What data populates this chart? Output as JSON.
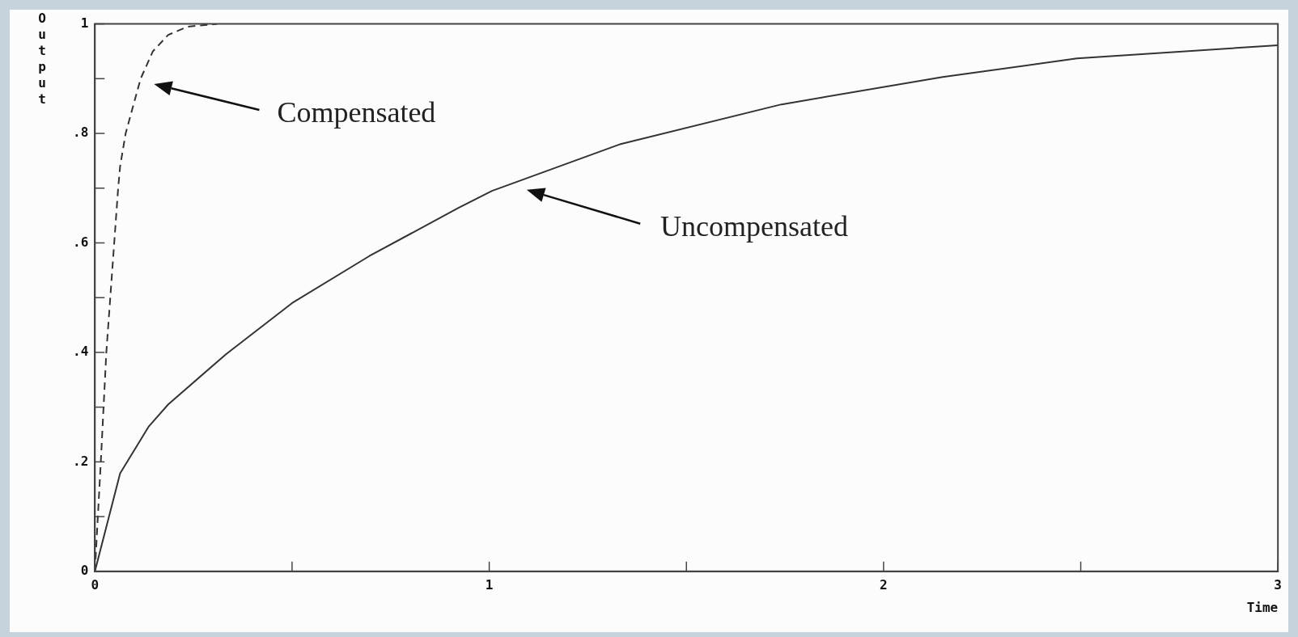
{
  "chart_data": {
    "type": "line",
    "xlabel": "Time",
    "ylabel": "Output",
    "xlim": [
      0,
      3
    ],
    "xticks": [
      0,
      {
        "value": 0.5,
        "label": null
      },
      1,
      {
        "value": 1.5,
        "label": null
      },
      2,
      {
        "value": 2.5,
        "label": null
      },
      3
    ],
    "ylim": [
      0,
      1
    ],
    "yticks": [
      0,
      {
        "value": 0.1,
        "label": null
      },
      {
        "value": 0.2,
        "label": ".2"
      },
      {
        "value": 0.3,
        "label": null
      },
      {
        "value": 0.4,
        "label": ".4"
      },
      {
        "value": 0.5,
        "label": null
      },
      {
        "value": 0.6,
        "label": ".6"
      },
      {
        "value": 0.7,
        "label": null
      },
      {
        "value": 0.8,
        "label": ".8"
      },
      {
        "value": 0.9,
        "label": null
      },
      1
    ],
    "grid": false,
    "legend": false,
    "marker": "none",
    "series": [
      {
        "color": "#333333",
        "line_style": "dashed",
        "x": [
          0,
          0.015,
          0.029,
          0.049,
          0.059,
          0.064,
          0.078,
          0.116,
          0.147,
          0.186,
          0.235,
          0.31
        ],
        "values": [
          0,
          0.2,
          0.4,
          0.6,
          0.7,
          0.74,
          0.8,
          0.9,
          0.95,
          0.98,
          0.995,
          1
        ]
      },
      {
        "color": "#333333",
        "line_style": "solid",
        "x": [
          0,
          0.064,
          0.137,
          0.186,
          0.333,
          0.5,
          0.696,
          0.922,
          1.007,
          1.331,
          1.741,
          2.15,
          2.49,
          3
        ],
        "values": [
          0,
          0.179,
          0.265,
          0.305,
          0.397,
          0.49,
          0.576,
          0.664,
          0.695,
          0.78,
          0.853,
          0.903,
          0.937,
          0.961
        ]
      }
    ],
    "annotations": [
      "Compensated",
      "Uncompensated"
    ]
  }
}
